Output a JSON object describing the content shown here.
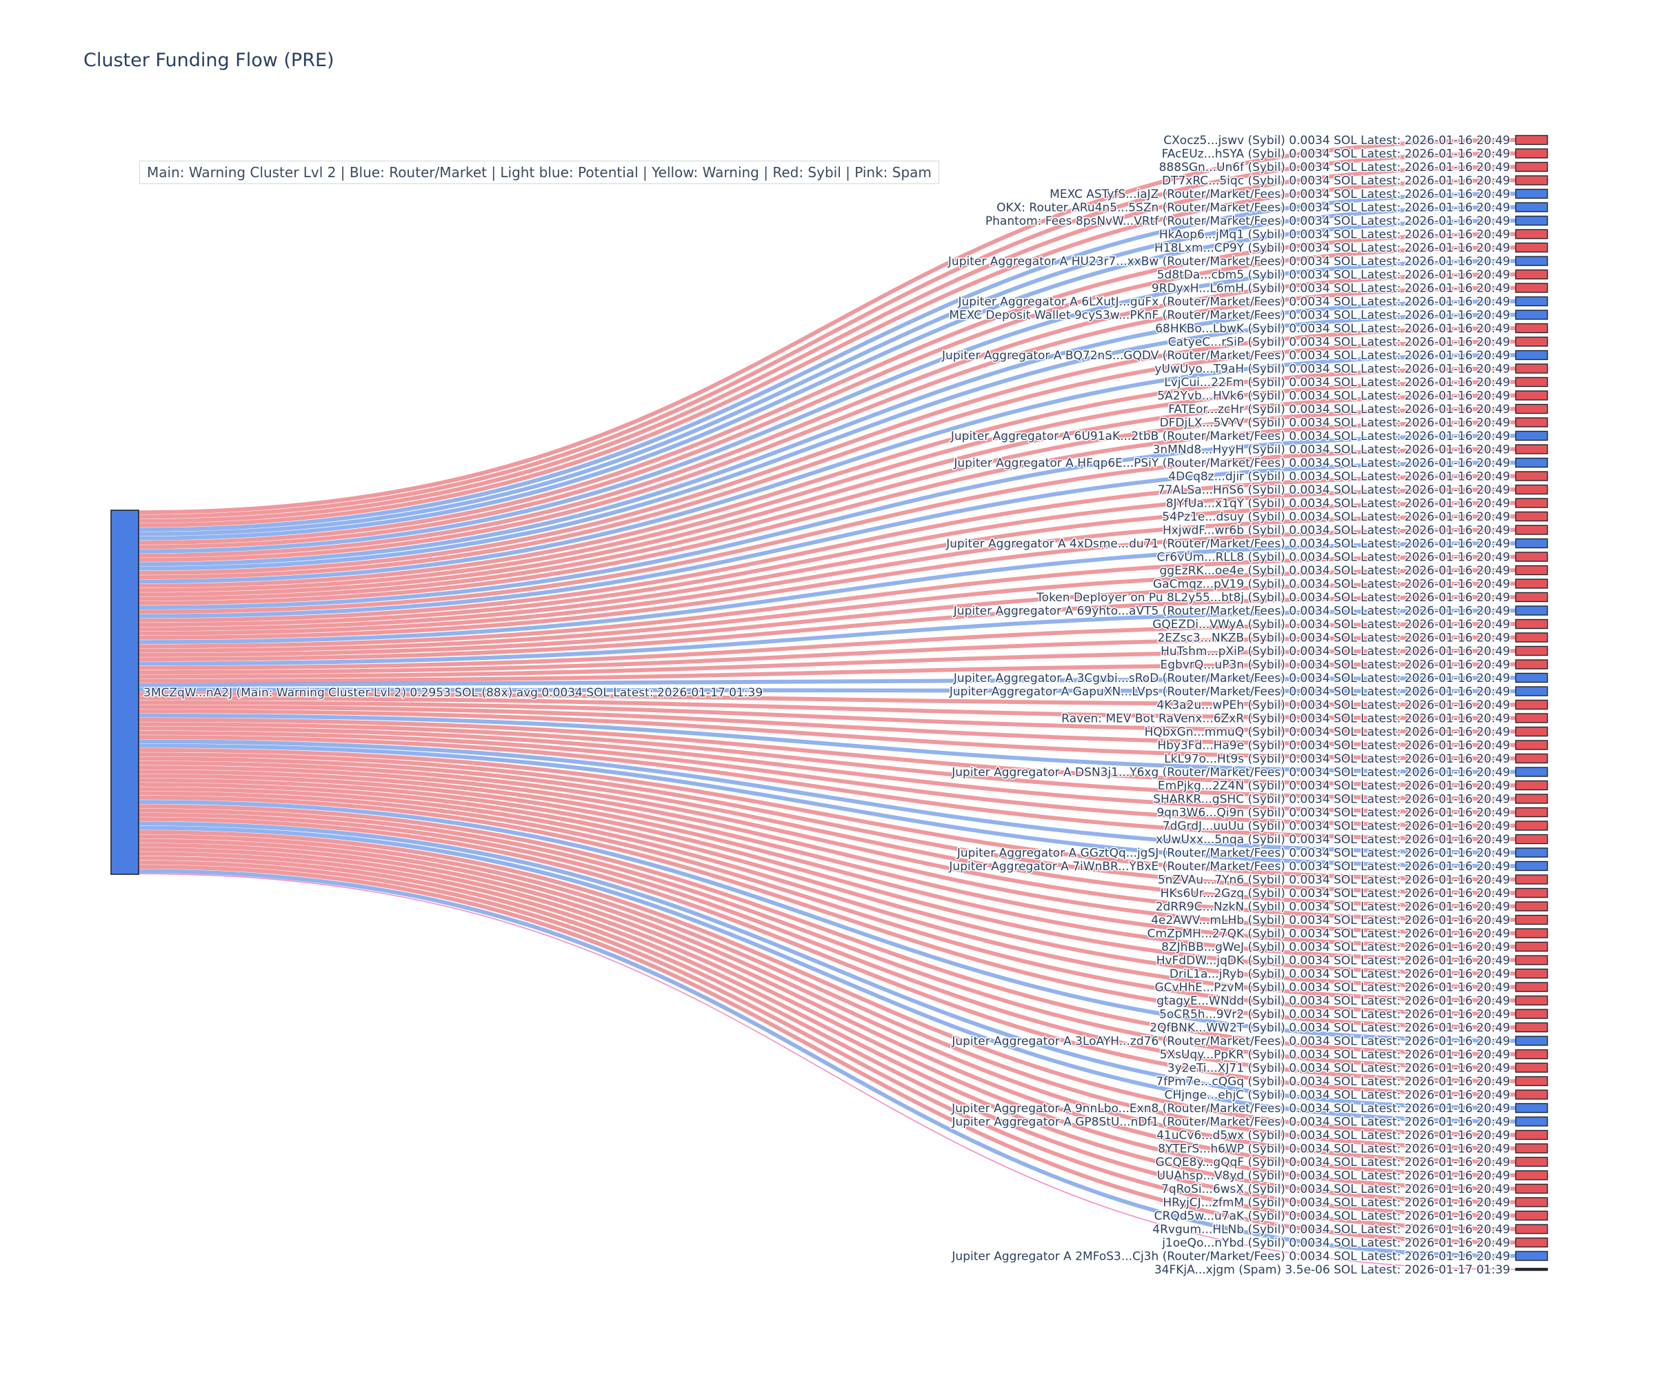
{
  "title": "Cluster Funding Flow (PRE)",
  "legend": {
    "text": "Main: Warning Cluster Lvl 2  |  Blue: Router/Market | Light blue: Potential | Yellow: Warning | Red: Sybil | Pink: Spam"
  },
  "colors": {
    "sybil": "#e4555b",
    "router": "#4a7ee3",
    "spam_link": "#f23f9f",
    "spam_node": "#2b2b2b",
    "main_node": "#4a7ee3",
    "node_border": "#20262e",
    "label_text": "#2a3f5f",
    "link_opacity": 0.6
  },
  "chart_data": {
    "type": "sankey",
    "title": "Cluster Funding Flow (PRE)",
    "unit": "SOL",
    "source": {
      "label": "3MCZqW...nA2J (Main: Warning Cluster Lvl 2) 0.2953 SOL (88x) avg 0.0034 SOL Latest: 2026-01-17 01:39",
      "type": "main",
      "total_sol": 0.2953,
      "tx_count": 88,
      "avg_sol": 0.0034
    },
    "link_value_sol": 0.0034,
    "spam_link_value_sol": 3.5e-06,
    "targets": [
      {
        "label": "CXocz5...jswv (Sybil) 0.0034 SOL Latest: 2026-01-16 20:49",
        "type": "sybil"
      },
      {
        "label": "FAcEUz...hSYA (Sybil) 0.0034 SOL Latest: 2026-01-16 20:49",
        "type": "sybil"
      },
      {
        "label": "888SGn...Un6f (Sybil) 0.0034 SOL Latest: 2026-01-16 20:49",
        "type": "sybil"
      },
      {
        "label": "DT7xRC...5iqc (Sybil) 0.0034 SOL Latest: 2026-01-16 20:49",
        "type": "sybil"
      },
      {
        "label": "MEXC ASTyfS...iaJZ (Router/Market/Fees) 0.0034 SOL Latest: 2026-01-16 20:49",
        "type": "router"
      },
      {
        "label": "OKX: Router ARu4n5...5SZn (Router/Market/Fees) 0.0034 SOL Latest: 2026-01-16 20:49",
        "type": "router"
      },
      {
        "label": "Phantom: Fees 8psNvW...VRtf (Router/Market/Fees) 0.0034 SOL Latest: 2026-01-16 20:49",
        "type": "router"
      },
      {
        "label": "HkAop6...jMq1 (Sybil) 0.0034 SOL Latest: 2026-01-16 20:49",
        "type": "sybil"
      },
      {
        "label": "H18Lxm...CP9Y (Sybil) 0.0034 SOL Latest: 2026-01-16 20:49",
        "type": "sybil"
      },
      {
        "label": "Jupiter Aggregator A HU23r7...xxBw (Router/Market/Fees) 0.0034 SOL Latest: 2026-01-16 20:49",
        "type": "router"
      },
      {
        "label": "5d8tDa...cbm5 (Sybil) 0.0034 SOL Latest: 2026-01-16 20:49",
        "type": "sybil"
      },
      {
        "label": "9RDyxH...L6mH (Sybil) 0.0034 SOL Latest: 2026-01-16 20:49",
        "type": "sybil"
      },
      {
        "label": "Jupiter Aggregator A 6LXutJ...guFx (Router/Market/Fees) 0.0034 SOL Latest: 2026-01-16 20:49",
        "type": "router"
      },
      {
        "label": "MEXC Deposit Wallet 9cyS3w...PKnF (Router/Market/Fees) 0.0034 SOL Latest: 2026-01-16 20:49",
        "type": "router"
      },
      {
        "label": "68HKBo...LbwK (Sybil) 0.0034 SOL Latest: 2026-01-16 20:49",
        "type": "sybil"
      },
      {
        "label": "CatyeC...rSiP (Sybil) 0.0034 SOL Latest: 2026-01-16 20:49",
        "type": "sybil"
      },
      {
        "label": "Jupiter Aggregator A BQ72nS...GQDV (Router/Market/Fees) 0.0034 SOL Latest: 2026-01-16 20:49",
        "type": "router"
      },
      {
        "label": "yUwUyo...T9aH (Sybil) 0.0034 SOL Latest: 2026-01-16 20:49",
        "type": "sybil"
      },
      {
        "label": "LvjCui...22Fm (Sybil) 0.0034 SOL Latest: 2026-01-16 20:49",
        "type": "sybil"
      },
      {
        "label": "5A2Yvb...HVk6 (Sybil) 0.0034 SOL Latest: 2026-01-16 20:49",
        "type": "sybil"
      },
      {
        "label": "FATEor...zcHr (Sybil) 0.0034 SOL Latest: 2026-01-16 20:49",
        "type": "sybil"
      },
      {
        "label": "DFDjLX...5VYV (Sybil) 0.0034 SOL Latest: 2026-01-16 20:49",
        "type": "sybil"
      },
      {
        "label": "Jupiter Aggregator A 6U91aK...2tbB (Router/Market/Fees) 0.0034 SOL Latest: 2026-01-16 20:49",
        "type": "router"
      },
      {
        "label": "3nMNd8...HyyH (Sybil) 0.0034 SOL Latest: 2026-01-16 20:49",
        "type": "sybil"
      },
      {
        "label": "Jupiter Aggregator A HFqp6E...PSiY (Router/Market/Fees) 0.0034 SOL Latest: 2026-01-16 20:49",
        "type": "router"
      },
      {
        "label": "4DCq8z...djir (Sybil) 0.0034 SOL Latest: 2026-01-16 20:49",
        "type": "sybil"
      },
      {
        "label": "77ALSa...HnS6 (Sybil) 0.0034 SOL Latest: 2026-01-16 20:49",
        "type": "sybil"
      },
      {
        "label": "8JYfUa...x1qY (Sybil) 0.0034 SOL Latest: 2026-01-16 20:49",
        "type": "sybil"
      },
      {
        "label": "54Pz1e...dsuy (Sybil) 0.0034 SOL Latest: 2026-01-16 20:49",
        "type": "sybil"
      },
      {
        "label": "HxjwdF...wr6b (Sybil) 0.0034 SOL Latest: 2026-01-16 20:49",
        "type": "sybil"
      },
      {
        "label": "Jupiter Aggregator A 4xDsme...du71 (Router/Market/Fees) 0.0034 SOL Latest: 2026-01-16 20:49",
        "type": "router"
      },
      {
        "label": "Cr6vUm...RLL8 (Sybil) 0.0034 SOL Latest: 2026-01-16 20:49",
        "type": "sybil"
      },
      {
        "label": "ggEzRK...oe4e (Sybil) 0.0034 SOL Latest: 2026-01-16 20:49",
        "type": "sybil"
      },
      {
        "label": "GaCmqz...pV19 (Sybil) 0.0034 SOL Latest: 2026-01-16 20:49",
        "type": "sybil"
      },
      {
        "label": "Token Deployer on Pu 8L2y55...bt8j (Sybil) 0.0034 SOL Latest: 2026-01-16 20:49",
        "type": "sybil"
      },
      {
        "label": "Jupiter Aggregator A 69yhto...aVT5 (Router/Market/Fees) 0.0034 SOL Latest: 2026-01-16 20:49",
        "type": "router"
      },
      {
        "label": "GQEZDi...VWyA (Sybil) 0.0034 SOL Latest: 2026-01-16 20:49",
        "type": "sybil"
      },
      {
        "label": "2EZsc3...NKZB (Sybil) 0.0034 SOL Latest: 2026-01-16 20:49",
        "type": "sybil"
      },
      {
        "label": "HuTshm...pXiP (Sybil) 0.0034 SOL Latest: 2026-01-16 20:49",
        "type": "sybil"
      },
      {
        "label": "EgbvrQ...uP3n (Sybil) 0.0034 SOL Latest: 2026-01-16 20:49",
        "type": "sybil"
      },
      {
        "label": "Jupiter Aggregator A 3Cgvbi...sRoD (Router/Market/Fees) 0.0034 SOL Latest: 2026-01-16 20:49",
        "type": "router"
      },
      {
        "label": "Jupiter Aggregator A GapuXN...LVps (Router/Market/Fees) 0.0034 SOL Latest: 2026-01-16 20:49",
        "type": "router"
      },
      {
        "label": "4K3a2u...wPEh (Sybil) 0.0034 SOL Latest: 2026-01-16 20:49",
        "type": "sybil"
      },
      {
        "label": "Raven: MEV Bot RaVenx...6ZxR (Sybil) 0.0034 SOL Latest: 2026-01-16 20:49",
        "type": "sybil"
      },
      {
        "label": "HQbxGn...mmuQ (Sybil) 0.0034 SOL Latest: 2026-01-16 20:49",
        "type": "sybil"
      },
      {
        "label": "Hby3Fd...Ha9e (Sybil) 0.0034 SOL Latest: 2026-01-16 20:49",
        "type": "sybil"
      },
      {
        "label": "LkL97o...Ht9s (Sybil) 0.0034 SOL Latest: 2026-01-16 20:49",
        "type": "sybil"
      },
      {
        "label": "Jupiter Aggregator A DSN3j1...Y6xg (Router/Market/Fees) 0.0034 SOL Latest: 2026-01-16 20:49",
        "type": "router"
      },
      {
        "label": "EmPjkg...2Z4N (Sybil) 0.0034 SOL Latest: 2026-01-16 20:49",
        "type": "sybil"
      },
      {
        "label": "SHARKR...gSHC (Sybil) 0.0034 SOL Latest: 2026-01-16 20:49",
        "type": "sybil"
      },
      {
        "label": "9qn3W6...Qi9n (Sybil) 0.0034 SOL Latest: 2026-01-16 20:49",
        "type": "sybil"
      },
      {
        "label": "7dGrdJ...uuUu (Sybil) 0.0034 SOL Latest: 2026-01-16 20:49",
        "type": "sybil"
      },
      {
        "label": "xUwUxx...5nqa (Sybil) 0.0034 SOL Latest: 2026-01-16 20:49",
        "type": "sybil"
      },
      {
        "label": "Jupiter Aggregator A GGztQq...jgSJ (Router/Market/Fees) 0.0034 SOL Latest: 2026-01-16 20:49",
        "type": "router"
      },
      {
        "label": "Jupiter Aggregator A 7iWnBR...YBxE (Router/Market/Fees) 0.0034 SOL Latest: 2026-01-16 20:49",
        "type": "router"
      },
      {
        "label": "5nZVAu...7Yn6 (Sybil) 0.0034 SOL Latest: 2026-01-16 20:49",
        "type": "sybil"
      },
      {
        "label": "HKs6Ur...2Gzq (Sybil) 0.0034 SOL Latest: 2026-01-16 20:49",
        "type": "sybil"
      },
      {
        "label": "2dRR9C...NzkN (Sybil) 0.0034 SOL Latest: 2026-01-16 20:49",
        "type": "sybil"
      },
      {
        "label": "4e2AWV...mLHb (Sybil) 0.0034 SOL Latest: 2026-01-16 20:49",
        "type": "sybil"
      },
      {
        "label": "CmZpMH...27QK (Sybil) 0.0034 SOL Latest: 2026-01-16 20:49",
        "type": "sybil"
      },
      {
        "label": "8ZJhBB...gWeJ (Sybil) 0.0034 SOL Latest: 2026-01-16 20:49",
        "type": "sybil"
      },
      {
        "label": "HvFdDW...jqDK (Sybil) 0.0034 SOL Latest: 2026-01-16 20:49",
        "type": "sybil"
      },
      {
        "label": "DriL1a...jRyb (Sybil) 0.0034 SOL Latest: 2026-01-16 20:49",
        "type": "sybil"
      },
      {
        "label": "GCvHhE...PzvM (Sybil) 0.0034 SOL Latest: 2026-01-16 20:49",
        "type": "sybil"
      },
      {
        "label": "gtagyE...WNdd (Sybil) 0.0034 SOL Latest: 2026-01-16 20:49",
        "type": "sybil"
      },
      {
        "label": "5oCR5h...9Vr2 (Sybil) 0.0034 SOL Latest: 2026-01-16 20:49",
        "type": "sybil"
      },
      {
        "label": "2QfBNK...WW2T (Sybil) 0.0034 SOL Latest: 2026-01-16 20:49",
        "type": "sybil"
      },
      {
        "label": "Jupiter Aggregator A 3LoAYH...zd76 (Router/Market/Fees) 0.0034 SOL Latest: 2026-01-16 20:49",
        "type": "router"
      },
      {
        "label": "5XsUqy...PpKR (Sybil) 0.0034 SOL Latest: 2026-01-16 20:49",
        "type": "sybil"
      },
      {
        "label": "3y2eTi...XJ71 (Sybil) 0.0034 SOL Latest: 2026-01-16 20:49",
        "type": "sybil"
      },
      {
        "label": "7fPm7e...cQGq (Sybil) 0.0034 SOL Latest: 2026-01-16 20:49",
        "type": "sybil"
      },
      {
        "label": "CHjnge...ehjC (Sybil) 0.0034 SOL Latest: 2026-01-16 20:49",
        "type": "sybil"
      },
      {
        "label": "Jupiter Aggregator A 9nnLbo...Exn8 (Router/Market/Fees) 0.0034 SOL Latest: 2026-01-16 20:49",
        "type": "router"
      },
      {
        "label": "Jupiter Aggregator A GP8StU...nDf1 (Router/Market/Fees) 0.0034 SOL Latest: 2026-01-16 20:49",
        "type": "router"
      },
      {
        "label": "41uCv6...d5wx (Sybil) 0.0034 SOL Latest: 2026-01-16 20:49",
        "type": "sybil"
      },
      {
        "label": "8YTErS...h6WP (Sybil) 0.0034 SOL Latest: 2026-01-16 20:49",
        "type": "sybil"
      },
      {
        "label": "GCQE8y...gQqF (Sybil) 0.0034 SOL Latest: 2026-01-16 20:49",
        "type": "sybil"
      },
      {
        "label": "UUAhsp...V8yd (Sybil) 0.0034 SOL Latest: 2026-01-16 20:49",
        "type": "sybil"
      },
      {
        "label": "7qRoSi...6wsX (Sybil) 0.0034 SOL Latest: 2026-01-16 20:49",
        "type": "sybil"
      },
      {
        "label": "HRyjCJ...zfmM (Sybil) 0.0034 SOL Latest: 2026-01-16 20:49",
        "type": "sybil"
      },
      {
        "label": "CRQd5w...u7aK (Sybil) 0.0034 SOL Latest: 2026-01-16 20:49",
        "type": "sybil"
      },
      {
        "label": "4Rvgum...HLNb (Sybil) 0.0034 SOL Latest: 2026-01-16 20:49",
        "type": "sybil"
      },
      {
        "label": "j1oeQo...nYbd (Sybil) 0.0034 SOL Latest: 2026-01-16 20:49",
        "type": "sybil"
      },
      {
        "label": "Jupiter Aggregator A 2MFoS3...Cj3h (Router/Market/Fees) 0.0034 SOL Latest: 2026-01-16 20:49",
        "type": "router"
      },
      {
        "label": "34FKjA...xjgm (Spam) 3.5e-06 SOL Latest: 2026-01-17 01:39",
        "type": "spam"
      }
    ]
  }
}
